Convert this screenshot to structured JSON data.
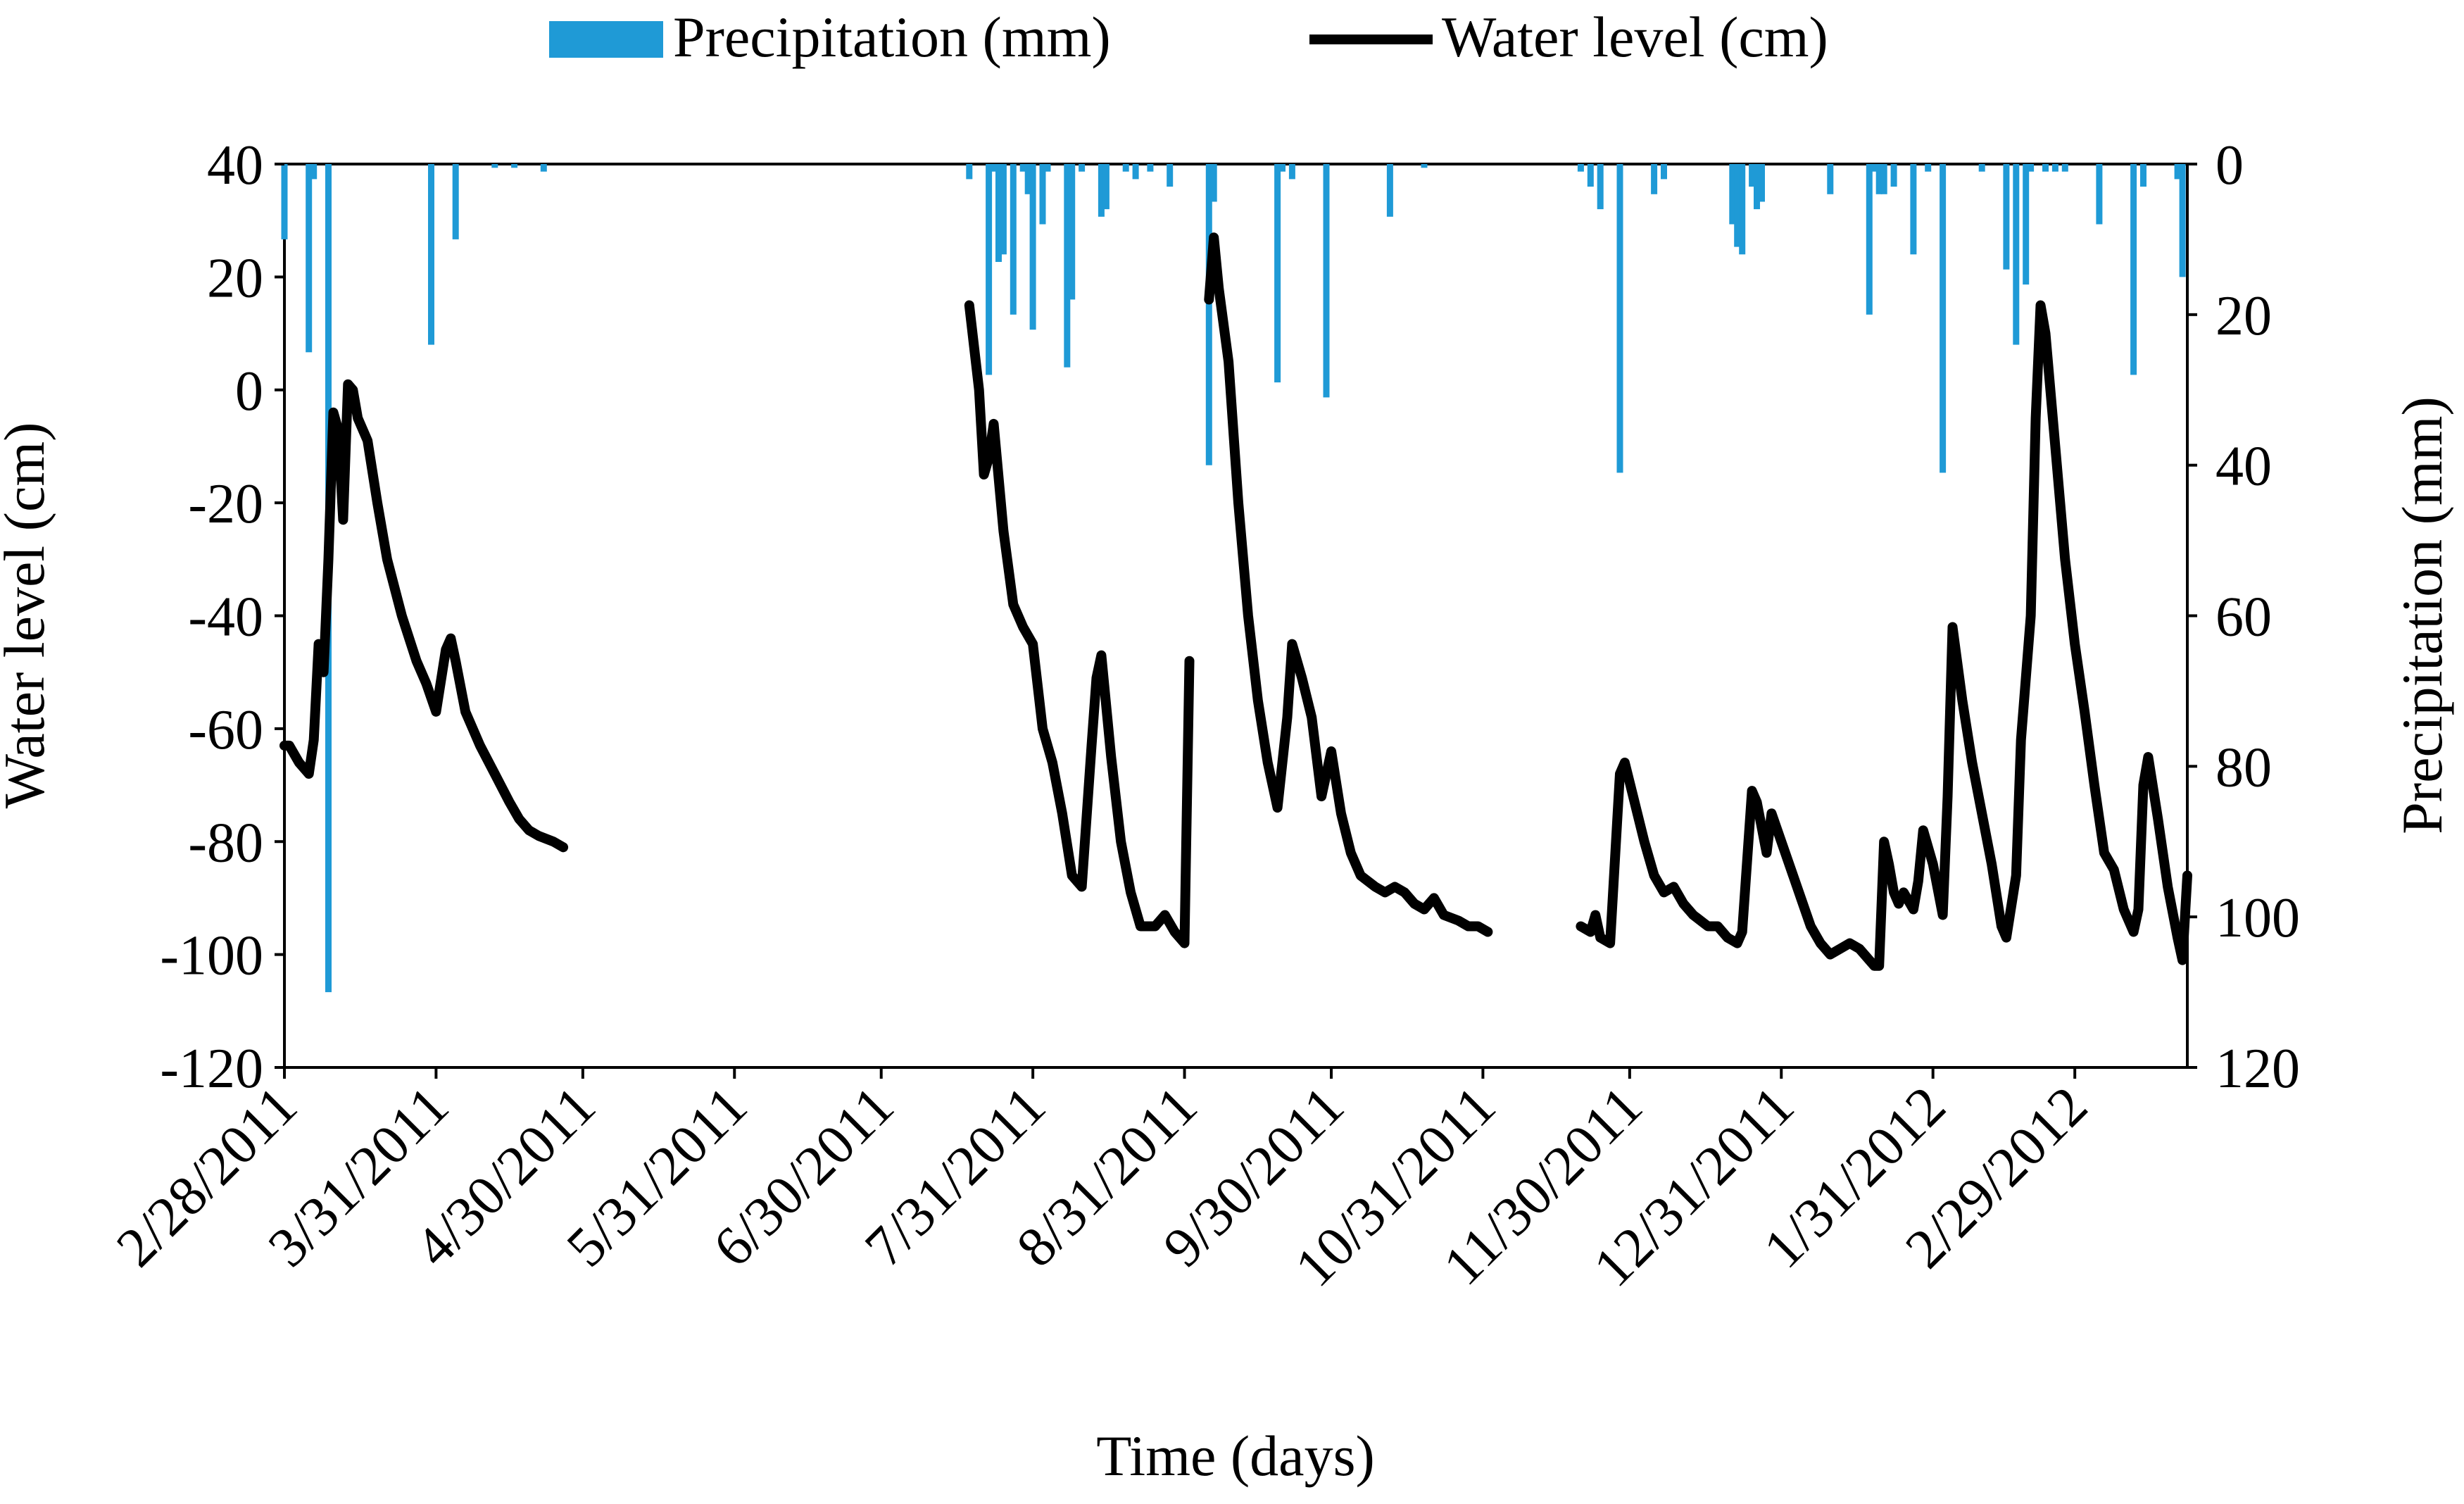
{
  "chart_data": {
    "type": "combo-bar-line",
    "title": "",
    "xlabel": "Time (days)",
    "ylabel_left": "Water level (cm)",
    "ylabel_right": "Precipitation (mm)",
    "legend": [
      {
        "key": "precip",
        "label": "Precipitation (mm)",
        "marker": "bar"
      },
      {
        "key": "water",
        "label": "Water level (cm)",
        "marker": "line"
      }
    ],
    "legend_position": "top-center",
    "x_range_days": [
      0,
      389
    ],
    "x_ticks": [
      {
        "label": "2/28/2011",
        "day": 0
      },
      {
        "label": "3/31/2011",
        "day": 31
      },
      {
        "label": "4/30/2011",
        "day": 61
      },
      {
        "label": "5/31/2011",
        "day": 92
      },
      {
        "label": "6/30/2011",
        "day": 122
      },
      {
        "label": "7/31/2011",
        "day": 153
      },
      {
        "label": "8/31/2011",
        "day": 184
      },
      {
        "label": "9/30/2011",
        "day": 214
      },
      {
        "label": "10/31/2011",
        "day": 245
      },
      {
        "label": "11/30/2011",
        "day": 275
      },
      {
        "label": "12/31/2011",
        "day": 306
      },
      {
        "label": "1/31/2012",
        "day": 337
      },
      {
        "label": "2/29/2012",
        "day": 366
      }
    ],
    "y_left": {
      "min": -120,
      "max": 40,
      "ticks": [
        "40",
        "20",
        "0",
        "-20",
        "-40",
        "-60",
        "-80",
        "-100",
        "-120"
      ]
    },
    "y_right": {
      "min": 0,
      "max": 120,
      "inverted": true,
      "ticks": [
        "0",
        "20",
        "40",
        "60",
        "80",
        "100",
        "120"
      ]
    },
    "series": [
      {
        "name": "Precipitation (mm)",
        "axis": "right",
        "kind": "bar",
        "color": "#1f9ad6",
        "points": [
          [
            0,
            10
          ],
          [
            5,
            25
          ],
          [
            6,
            2
          ],
          [
            9,
            110
          ],
          [
            30,
            24
          ],
          [
            35,
            10
          ],
          [
            43,
            0.5
          ],
          [
            47,
            0.5
          ],
          [
            53,
            1
          ],
          [
            140,
            2
          ],
          [
            144,
            28
          ],
          [
            145,
            1
          ],
          [
            146,
            13
          ],
          [
            147,
            12
          ],
          [
            149,
            20
          ],
          [
            151,
            1
          ],
          [
            152,
            4
          ],
          [
            153,
            22
          ],
          [
            155,
            8
          ],
          [
            156,
            1
          ],
          [
            160,
            27
          ],
          [
            161,
            18
          ],
          [
            163,
            1
          ],
          [
            167,
            7
          ],
          [
            168,
            6
          ],
          [
            172,
            1
          ],
          [
            174,
            2
          ],
          [
            177,
            1
          ],
          [
            181,
            3
          ],
          [
            189,
            40
          ],
          [
            190,
            5
          ],
          [
            203,
            29
          ],
          [
            204,
            1
          ],
          [
            206,
            2
          ],
          [
            213,
            31
          ],
          [
            226,
            7
          ],
          [
            233,
            0.5
          ],
          [
            265,
            1
          ],
          [
            267,
            3
          ],
          [
            269,
            6
          ],
          [
            273,
            41
          ],
          [
            280,
            4
          ],
          [
            282,
            2
          ],
          [
            296,
            8
          ],
          [
            297,
            11
          ],
          [
            298,
            12
          ],
          [
            300,
            3
          ],
          [
            301,
            6
          ],
          [
            302,
            5
          ],
          [
            316,
            4
          ],
          [
            324,
            20
          ],
          [
            325,
            1
          ],
          [
            326,
            4
          ],
          [
            327,
            4
          ],
          [
            329,
            3
          ],
          [
            333,
            12
          ],
          [
            336,
            1
          ],
          [
            339,
            41
          ],
          [
            347,
            1
          ],
          [
            352,
            14
          ],
          [
            354,
            24
          ],
          [
            356,
            16
          ],
          [
            357,
            1
          ],
          [
            360,
            1
          ],
          [
            362,
            1
          ],
          [
            364,
            1
          ],
          [
            371,
            8
          ],
          [
            378,
            28
          ],
          [
            380,
            3
          ],
          [
            387,
            2
          ],
          [
            388,
            15
          ]
        ]
      },
      {
        "name": "Water level (cm)",
        "axis": "left",
        "kind": "line",
        "color": "#000000",
        "segments": [
          [
            [
              0,
              -63
            ],
            [
              1,
              -63
            ],
            [
              3,
              -66
            ],
            [
              5,
              -68
            ],
            [
              6,
              -62
            ],
            [
              7,
              -45
            ],
            [
              8,
              -50
            ],
            [
              9,
              -30
            ],
            [
              10,
              -4
            ],
            [
              11,
              -7
            ],
            [
              12,
              -23
            ],
            [
              13,
              1
            ],
            [
              14,
              0
            ],
            [
              15,
              -5
            ],
            [
              17,
              -9
            ],
            [
              19,
              -20
            ],
            [
              21,
              -30
            ],
            [
              24,
              -40
            ],
            [
              27,
              -48
            ],
            [
              29,
              -52
            ],
            [
              31,
              -57
            ],
            [
              33,
              -46
            ],
            [
              34,
              -44
            ],
            [
              35,
              -48
            ],
            [
              37,
              -57
            ],
            [
              40,
              -63
            ],
            [
              43,
              -68
            ],
            [
              46,
              -73
            ],
            [
              48,
              -76
            ],
            [
              50,
              -78
            ],
            [
              52,
              -79
            ],
            [
              55,
              -80
            ],
            [
              57,
              -81
            ]
          ],
          [
            [
              140,
              15
            ],
            [
              142,
              0
            ],
            [
              143,
              -15
            ],
            [
              144,
              -12
            ],
            [
              145,
              -6
            ],
            [
              147,
              -25
            ],
            [
              149,
              -38
            ],
            [
              151,
              -42
            ],
            [
              153,
              -45
            ],
            [
              155,
              -60
            ],
            [
              157,
              -66
            ],
            [
              159,
              -75
            ],
            [
              161,
              -86
            ],
            [
              163,
              -88
            ],
            [
              165,
              -63
            ],
            [
              166,
              -51
            ],
            [
              167,
              -47
            ],
            [
              169,
              -65
            ],
            [
              171,
              -80
            ],
            [
              173,
              -89
            ],
            [
              175,
              -95
            ],
            [
              178,
              -95
            ],
            [
              180,
              -93
            ],
            [
              182,
              -96
            ],
            [
              184,
              -98
            ],
            [
              185,
              -48
            ]
          ],
          [
            [
              189,
              16
            ],
            [
              190,
              27
            ],
            [
              191,
              18
            ],
            [
              193,
              5
            ],
            [
              195,
              -20
            ],
            [
              197,
              -40
            ],
            [
              199,
              -55
            ],
            [
              201,
              -66
            ],
            [
              203,
              -74
            ],
            [
              205,
              -58
            ],
            [
              206,
              -45
            ],
            [
              208,
              -51
            ],
            [
              210,
              -58
            ],
            [
              212,
              -72
            ],
            [
              214,
              -64
            ],
            [
              216,
              -75
            ],
            [
              218,
              -82
            ],
            [
              220,
              -86
            ],
            [
              223,
              -88
            ],
            [
              225,
              -89
            ],
            [
              227,
              -88
            ],
            [
              229,
              -89
            ],
            [
              231,
              -91
            ],
            [
              233,
              -92
            ],
            [
              235,
              -90
            ],
            [
              237,
              -93
            ],
            [
              240,
              -94
            ],
            [
              242,
              -95
            ],
            [
              244,
              -95
            ],
            [
              246,
              -96
            ]
          ],
          [
            [
              265,
              -95
            ],
            [
              267,
              -96
            ],
            [
              268,
              -93
            ],
            [
              269,
              -97
            ],
            [
              271,
              -98
            ],
            [
              273,
              -68
            ],
            [
              274,
              -66
            ],
            [
              276,
              -73
            ],
            [
              278,
              -80
            ],
            [
              280,
              -86
            ],
            [
              282,
              -89
            ],
            [
              284,
              -88
            ],
            [
              286,
              -91
            ],
            [
              288,
              -93
            ],
            [
              291,
              -95
            ],
            [
              293,
              -95
            ],
            [
              295,
              -97
            ],
            [
              297,
              -98
            ],
            [
              298,
              -96
            ],
            [
              300,
              -71
            ],
            [
              301,
              -73
            ],
            [
              303,
              -82
            ],
            [
              304,
              -75
            ],
            [
              306,
              -80
            ],
            [
              308,
              -85
            ],
            [
              310,
              -90
            ],
            [
              312,
              -95
            ],
            [
              314,
              -98
            ],
            [
              316,
              -100
            ],
            [
              318,
              -99
            ],
            [
              320,
              -98
            ],
            [
              322,
              -99
            ],
            [
              324,
              -101
            ],
            [
              325,
              -102
            ],
            [
              326,
              -102
            ],
            [
              327,
              -80
            ],
            [
              328,
              -84
            ],
            [
              329,
              -89
            ],
            [
              330,
              -91
            ],
            [
              331,
              -89
            ],
            [
              333,
              -92
            ],
            [
              334,
              -87
            ],
            [
              335,
              -78
            ],
            [
              337,
              -84
            ],
            [
              339,
              -93
            ],
            [
              340,
              -72
            ],
            [
              341,
              -42
            ],
            [
              343,
              -55
            ],
            [
              345,
              -66
            ],
            [
              347,
              -75
            ],
            [
              349,
              -84
            ],
            [
              351,
              -95
            ],
            [
              352,
              -97
            ],
            [
              354,
              -86
            ],
            [
              355,
              -62
            ],
            [
              357,
              -40
            ],
            [
              358,
              -5
            ],
            [
              359,
              15
            ],
            [
              360,
              10
            ],
            [
              362,
              -10
            ],
            [
              364,
              -30
            ],
            [
              366,
              -45
            ],
            [
              368,
              -57
            ],
            [
              370,
              -70
            ],
            [
              372,
              -82
            ],
            [
              374,
              -85
            ],
            [
              376,
              -92
            ],
            [
              378,
              -96
            ],
            [
              379,
              -92
            ],
            [
              380,
              -70
            ],
            [
              381,
              -65
            ],
            [
              383,
              -76
            ],
            [
              385,
              -88
            ],
            [
              387,
              -97
            ],
            [
              388,
              -101
            ],
            [
              389,
              -86
            ]
          ]
        ]
      }
    ]
  }
}
